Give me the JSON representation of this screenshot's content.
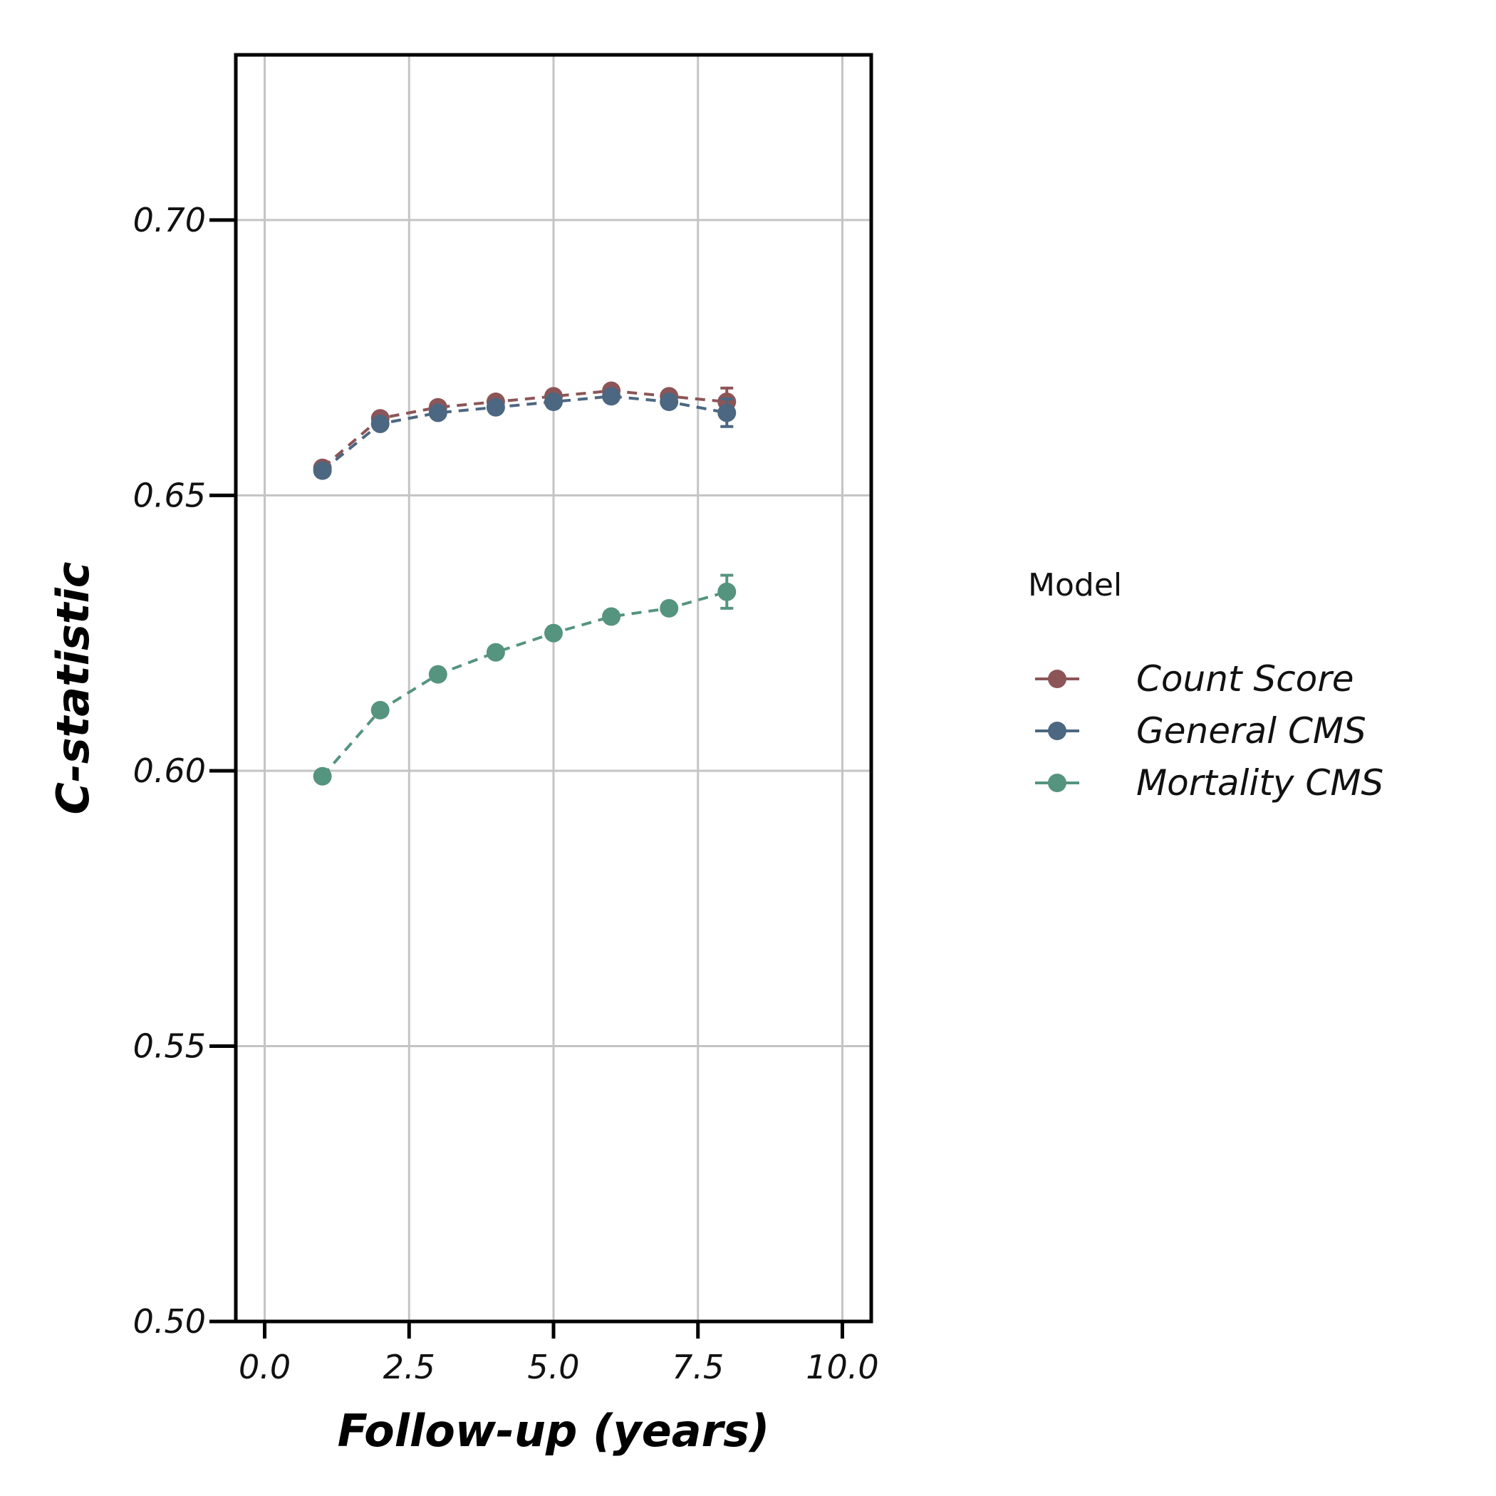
{
  "chart_data": {
    "type": "line",
    "xlabel": "Follow-up (years)",
    "ylabel": "C-statistic",
    "xlim": [
      -0.5,
      10.5
    ],
    "ylim": [
      0.5,
      0.73
    ],
    "xticks": [
      0.0,
      2.5,
      5.0,
      7.5,
      10.0
    ],
    "xtick_labels": [
      "0.0",
      "2.5",
      "5.0",
      "7.5",
      "10.0"
    ],
    "yticks": [
      0.5,
      0.55,
      0.6,
      0.65,
      0.7
    ],
    "ytick_labels": [
      "0.50",
      "0.55",
      "0.60",
      "0.65",
      "0.70"
    ],
    "grid": true,
    "legend": {
      "title": "Model",
      "position": "right"
    },
    "x": [
      1,
      2,
      3,
      4,
      5,
      6,
      7,
      8
    ],
    "series": [
      {
        "name": "Count Score",
        "color": "#8c5558",
        "values": [
          0.655,
          0.664,
          0.666,
          0.667,
          0.668,
          0.669,
          0.668,
          0.667
        ],
        "error": [
          0.0005,
          0.0005,
          0.0005,
          0.0006,
          0.0006,
          0.0008,
          0.001,
          0.0025
        ]
      },
      {
        "name": "General CMS",
        "color": "#4c6781",
        "values": [
          0.6545,
          0.663,
          0.665,
          0.666,
          0.667,
          0.668,
          0.667,
          0.665
        ],
        "error": [
          0.0005,
          0.0005,
          0.0005,
          0.0006,
          0.0006,
          0.0008,
          0.001,
          0.0025
        ]
      },
      {
        "name": "Mortality CMS",
        "color": "#55947e",
        "values": [
          0.599,
          0.611,
          0.6175,
          0.6215,
          0.625,
          0.628,
          0.6295,
          0.6325
        ],
        "error": [
          0.0005,
          0.0005,
          0.0005,
          0.0006,
          0.0006,
          0.0008,
          0.001,
          0.003
        ]
      }
    ]
  }
}
